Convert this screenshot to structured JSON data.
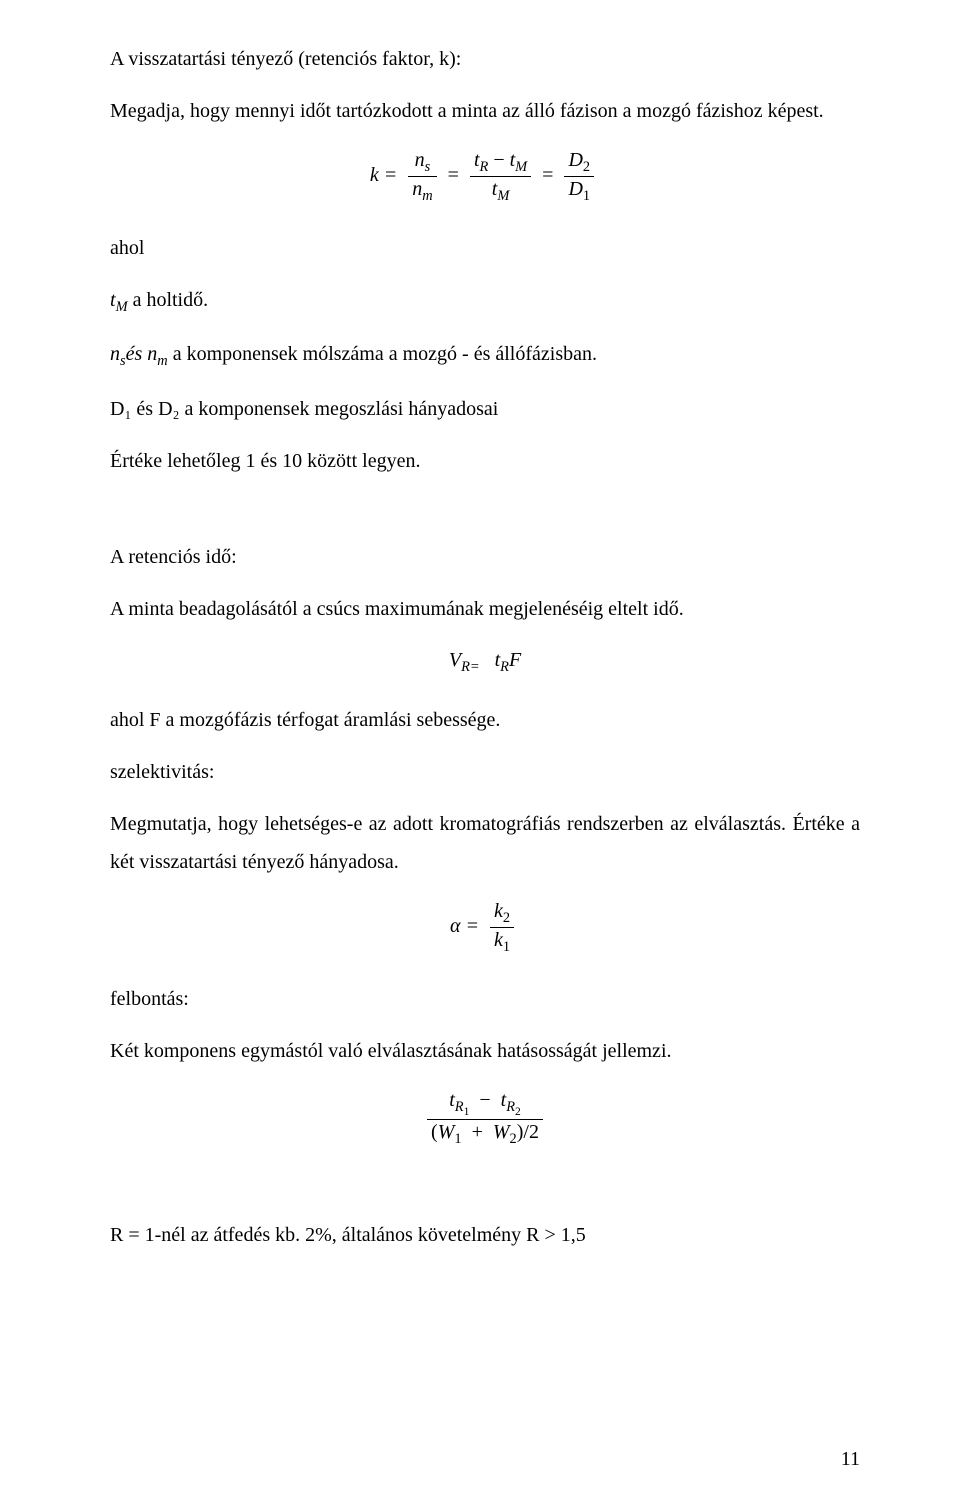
{
  "p1": "A visszatartási tényező (retenciós faktor, k):",
  "p2": "Megadja, hogy mennyi időt tartózkodott a minta az álló fázison a mozgó fázishoz képest.",
  "ahol": "ahol",
  "p3_suffix": " a holtidő.",
  "p4_suffix": " a komponensek mólszáma a mozgó - és állófázisban.",
  "p5": "D₁ és D₂ a komponensek megoszlási hányadosai",
  "p6": "Értéke lehetőleg 1 és 10 között legyen.",
  "p7": "A retenciós idő:",
  "p8": "A minta beadagolásától a csúcs maximumának megjelenéséig eltelt idő.",
  "p9": "ahol F a mozgófázis térfogat áramlási sebessége.",
  "p10": "szelektivitás:",
  "p11": "Megmutatja, hogy lehetséges-e az adott kromatográfiás rendszerben az elválasztás. Értéke a két visszatartási tényező hányadosa.",
  "p12": "felbontás:",
  "p13": "Két komponens egymástól való elválasztásának hatásosságát jellemzi.",
  "p14": "R = 1-nél az átfedés kb. 2%, általános követelmény R > 1,5",
  "page_number": "11",
  "formulas": {
    "k_eq": {
      "lhs": "k =",
      "frac1_num": "n",
      "frac1_num_sub": "s",
      "frac1_den": "n",
      "frac1_den_sub": "m",
      "frac2_num_a": "t",
      "frac2_num_a_sub": "R",
      "minus": "−",
      "frac2_num_b": "t",
      "frac2_num_b_sub": "M",
      "frac2_den": "t",
      "frac2_den_sub": "M",
      "frac3_num": "D",
      "frac3_num_sub": "2",
      "frac3_den": "D",
      "frac3_den_sub": "1",
      "eq": "="
    },
    "tM": {
      "sym": "t",
      "sub": "M"
    },
    "ns": {
      "sym": "n",
      "sub": "s"
    },
    "nm": {
      "sym": "n",
      "sub": "m"
    },
    "es": "és",
    "VR": {
      "V": "V",
      "Vsub": "R=",
      "sp": " ",
      "t": "t",
      "tsub": "R",
      "F": "F"
    },
    "alpha": {
      "lhs": "α =",
      "num": "k",
      "num_sub": "2",
      "den": "k",
      "den_sub": "1"
    },
    "resolution": {
      "num_a": "t",
      "num_a_sub": "R",
      "num_a_sub2": "1",
      "minus": "−",
      "num_b": "t",
      "num_b_sub": "R",
      "num_b_sub2": "2",
      "den_l": "(",
      "den_W1": "W",
      "den_W1_sub": "1",
      "plus": "+",
      "den_W2": "W",
      "den_W2_sub": "2",
      "den_r": ")/2"
    }
  }
}
